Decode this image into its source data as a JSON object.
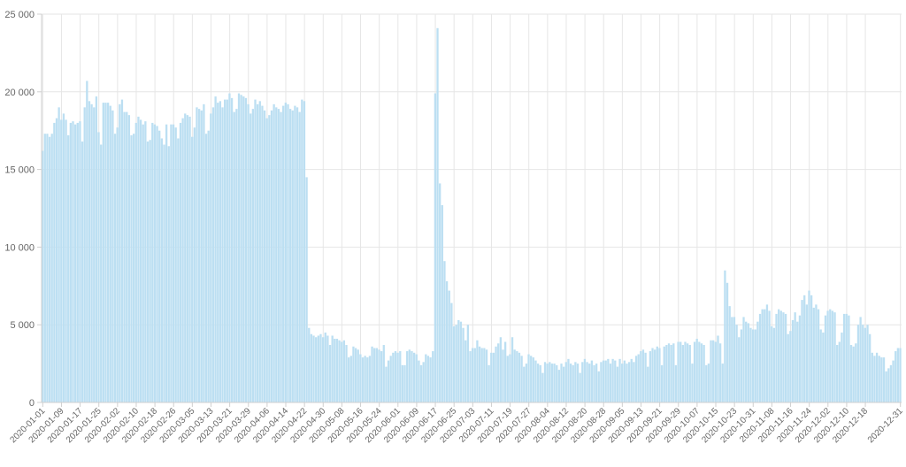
{
  "chart_data": {
    "type": "bar",
    "title": "",
    "xlabel": "",
    "ylabel": "",
    "grid": true,
    "ylim": [
      0,
      25000
    ],
    "yticks": [
      {
        "value": 0,
        "label": "0"
      },
      {
        "value": 5000,
        "label": "5 000"
      },
      {
        "value": 10000,
        "label": "10 000"
      },
      {
        "value": 15000,
        "label": "15 000"
      },
      {
        "value": 20000,
        "label": "20 000"
      },
      {
        "value": 25000,
        "label": "25 000"
      }
    ],
    "xtick_labels": [
      "2020-01-01",
      "2020-01-09",
      "2020-01-17",
      "2020-01-25",
      "2020-02-02",
      "2020-02-10",
      "2020-02-18",
      "2020-02-26",
      "2020-03-05",
      "2020-03-13",
      "2020-03-21",
      "2020-03-29",
      "2020-04-06",
      "2020-04-14",
      "2020-04-22",
      "2020-04-30",
      "2020-05-08",
      "2020-05-16",
      "2020-05-24",
      "2020-06-01",
      "2020-06-09",
      "2020-06-17",
      "2020-06-25",
      "2020-07-03",
      "2020-07-11",
      "2020-07-19",
      "2020-07-27",
      "2020-08-04",
      "2020-08-12",
      "2020-08-20",
      "2020-08-28",
      "2020-09-05",
      "2020-09-13",
      "2020-09-21",
      "2020-09-29",
      "2020-10-07",
      "2020-10-15",
      "2020-10-23",
      "2020-10-31",
      "2020-11-08",
      "2020-11-16",
      "2020-11-24",
      "2020-12-02",
      "2020-12-10",
      "2020-12-18",
      "2020-12-31"
    ],
    "bar_color": "#bcdff2",
    "bar_edge_color": "#9fcbe6",
    "grid_color": "#e6e6e6",
    "x_start": "2020-01-01",
    "x_end": "2020-12-31",
    "series": [
      {
        "segments": [
          [
            16200,
            17300,
            17300,
            17100,
            17300,
            18000,
            18300,
            19000,
            18200,
            18600,
            18200,
            17200,
            18000,
            18100,
            17900,
            18000,
            18100,
            16800,
            19000,
            20700,
            19400,
            19200,
            19000,
            19700,
            17400,
            16600,
            19300,
            19300,
            19300,
            19100,
            18800,
            17300,
            17700,
            19200,
            19500,
            18700,
            18700,
            18500,
            17200,
            17300,
            18000,
            18400,
            18200,
            17900,
            18100,
            16800,
            16900,
            18000,
            17900,
            17800,
            17500,
            17000,
            16600,
            17900,
            16500,
            17900,
            17900,
            17700,
            17000,
            18000,
            18300,
            18600,
            18500,
            18400,
            17100,
            17700,
            19000,
            18900,
            18800,
            19200,
            17300,
            17500,
            18600,
            19000,
            19700,
            19300,
            19400,
            19000,
            19500,
            19500,
            19900,
            19600,
            18700,
            18900,
            19900,
            19800,
            19700,
            19600,
            19200,
            18600,
            18900,
            19500,
            19200,
            19400,
            19100,
            18800,
            18300,
            18500,
            18800,
            19200,
            19000,
            18900,
            18700,
            19100,
            19300,
            19200,
            18900,
            18800,
            19100,
            19000,
            18700,
            19500,
            19400,
            14500,
            4800
          ],
          [
            4400,
            4300,
            4200,
            4300,
            4400,
            4200,
            4500,
            4300,
            3700,
            4300,
            4100,
            4100,
            4000,
            3900,
            4000,
            3700,
            2900,
            3000,
            3600,
            3500,
            3400,
            3100,
            2900,
            3000,
            2900,
            3000,
            3600,
            3500,
            3500,
            3400,
            3300,
            3700
          ],
          [
            2300,
            2700,
            3000,
            3200,
            3300,
            3200,
            3300,
            2400,
            2400,
            3300,
            3400,
            3300,
            3200,
            3100,
            2700,
            2400,
            2600,
            3100,
            3000,
            2900,
            3300,
            19900,
            24100,
            14100,
            12700,
            9100,
            7800,
            7200,
            6400,
            4900,
            5000,
            5300,
            5200,
            4800,
            4000,
            5000,
            3300,
            3500,
            3500,
            4000,
            3600,
            3500,
            3500,
            3400,
            2400,
            3200,
            3200,
            3600,
            3800,
            4200,
            3400,
            3900,
            3000,
            3100,
            4200,
            3400,
            3300,
            3200,
            3000,
            2300,
            2500,
            3100,
            3000,
            2900,
            2700,
            2500
          ],
          [
            2400,
            1900,
            2600,
            2500,
            2600,
            2500,
            2500,
            2400,
            2100,
            2500,
            2300,
            2600,
            2800,
            2500,
            2400,
            2600,
            2500,
            1900,
            2600,
            2800,
            2600,
            2500,
            2700,
            2400,
            2500,
            2000,
            2600,
            2700,
            2700,
            2800,
            2500,
            2800,
            2700,
            2300,
            2800,
            2500,
            2700,
            2500,
            2600,
            2800,
            2600,
            3000,
            3100,
            3300,
            3400,
            3200,
            2300,
            3300,
            3500,
            3400,
            3600,
            3500,
            2400,
            3600,
            3700,
            3800,
            3700,
            3800,
            2400,
            3900,
            3900,
            3700,
            3900,
            3800,
            3700,
            2500,
            3900,
            4100,
            3900,
            3800,
            3700,
            2400,
            2500,
            4000,
            4000,
            3900,
            4300,
            3800,
            2500,
            8500,
            7700,
            6200,
            5500,
            5500,
            5000,
            4200
          ],
          [
            4700,
            5500,
            5200,
            5100,
            4800,
            4700,
            4700,
            5200,
            5700,
            6000,
            6000,
            6300,
            5900,
            4900,
            4800,
            5700,
            6000,
            5900,
            5800,
            5700,
            4400,
            4600,
            5300,
            5800,
            5200,
            5600,
            6600,
            6900,
            6300,
            7200,
            6900,
            6100,
            6300,
            6000,
            4700,
            4500,
            5600,
            5900,
            6000,
            5900,
            5800,
            3700,
            3900,
            4500,
            5700,
            5700,
            5600,
            3700,
            3600,
            3800,
            5000,
            5500,
            5000,
            4800,
            5000,
            4400,
            3200,
            3000,
            3200,
            3000,
            2900,
            2900,
            2000,
            2200,
            2400,
            2700,
            3300,
            3500,
            3500
          ]
        ]
      }
    ]
  }
}
